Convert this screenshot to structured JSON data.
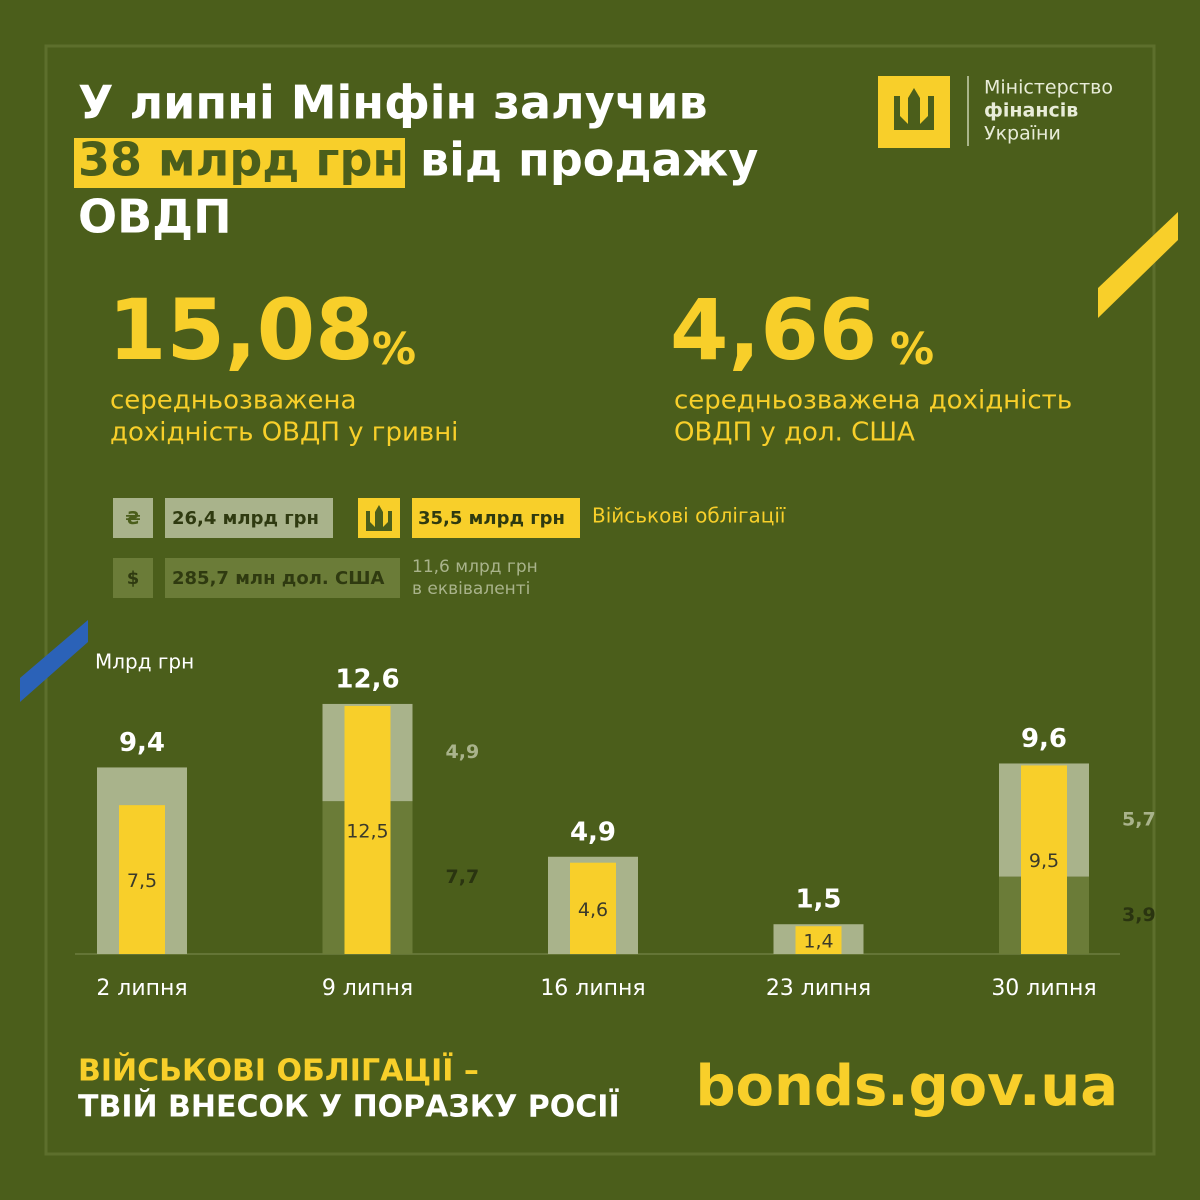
{
  "header": {
    "title_line1": "У липні Мінфін залучив",
    "title_highlight": "38 млрд грн",
    "title_rest": "від продажу",
    "title_line3": "ОВДП"
  },
  "logo": {
    "lines": [
      "Міністерство",
      "фінансів",
      "України"
    ]
  },
  "stats": [
    {
      "value": "15,08",
      "unit": "%",
      "caption": [
        "середньозважена",
        "дохідність ОВДП у гривні"
      ]
    },
    {
      "value": "4,66",
      "unit": "%",
      "caption": [
        "середньозважена дохідність",
        "ОВДП у дол. США"
      ]
    }
  ],
  "legend": {
    "uah_icon": "₴",
    "uah": "26,4 млрд грн",
    "military": "35,5 млрд грн",
    "military_name": "Військові облігації",
    "usd_icon": "$",
    "usd": "285,7 млн дол. США",
    "usd_note": [
      "11,6 млрд грн",
      "в еквіваленті"
    ]
  },
  "chart_data": {
    "type": "bar",
    "y_label": "Млрд грн",
    "categories": [
      "2 липня",
      "9 липня",
      "16 липня",
      "23 липня",
      "30 липня"
    ],
    "ylim": [
      0,
      13
    ],
    "series": [
      {
        "color": "#6b7c38",
        "values": [
          null,
          7.7,
          null,
          null,
          3.9
        ],
        "value_labels": [
          null,
          "7,7",
          null,
          null,
          "3,9"
        ]
      },
      {
        "color": "#a9b38b",
        "values": [
          9.4,
          4.9,
          4.9,
          1.5,
          5.7
        ],
        "value_labels": [
          null,
          "4,9",
          null,
          null,
          "5,7"
        ]
      },
      {
        "color": "#f8cf2a",
        "overlay": true,
        "values": [
          7.5,
          12.5,
          4.6,
          1.4,
          9.5
        ],
        "value_labels": [
          "7,5",
          "12,5",
          "4,6",
          "1,4",
          "9,5"
        ]
      }
    ],
    "totals": {
      "values": [
        9.4,
        12.6,
        4.9,
        1.5,
        9.6
      ],
      "value_labels": [
        "9,4",
        "12,6",
        "4,9",
        "1,5",
        "9,6"
      ]
    }
  },
  "footer": {
    "slogan": [
      "ВІЙСЬКОВІ ОБЛІГАЦІЇ –",
      "ТВІЙ ВНЕСОК У ПОРАЗКУ РОСІЇ"
    ],
    "url": "bonds.gov.ua"
  }
}
